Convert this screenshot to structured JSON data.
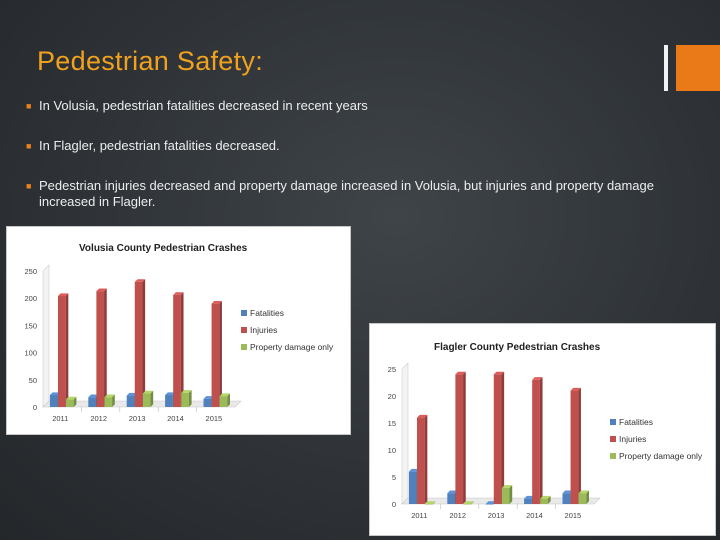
{
  "slide": {
    "title": "Pedestrian Safety:",
    "bullets": [
      "In Volusia, pedestrian fatalities decreased  in recent years",
      "In Flagler, pedestrian fatalities decreased.",
      "Pedestrian injuries decreased  and property damage increased in Volusia, but injuries and property damage increased in Flagler."
    ],
    "accent_colors": {
      "title": "#f0a11e",
      "bar_thick": "#ea7a17",
      "bar_thin": "#f2f2f2"
    }
  },
  "chart_data": [
    {
      "type": "bar",
      "title": "Volusia County  Pedestrian Crashes",
      "categories": [
        "2011",
        "2012",
        "2013",
        "2014",
        "2015"
      ],
      "series": [
        {
          "name": "Fatalities",
          "color": "#4f81bd",
          "values": [
            22,
            18,
            21,
            22,
            15
          ]
        },
        {
          "name": "Injuries",
          "color": "#c0504d",
          "values": [
            204,
            213,
            230,
            206,
            190
          ]
        },
        {
          "name": "Property damage only",
          "color": "#9bbb59",
          "values": [
            14,
            18,
            25,
            26,
            20
          ]
        }
      ],
      "ylim": [
        0,
        250
      ],
      "yticks": [
        "0",
        "50",
        "100",
        "150",
        "200",
        "250"
      ],
      "grid": false,
      "legend": "right"
    },
    {
      "type": "bar",
      "title": "Flagler County  Pedestrian Crashes",
      "categories": [
        "2011",
        "2012",
        "2013",
        "2014",
        "2015"
      ],
      "series": [
        {
          "name": "Fatalities",
          "color": "#4f81bd",
          "values": [
            6,
            2,
            0,
            1,
            2
          ]
        },
        {
          "name": "Injuries",
          "color": "#c0504d",
          "values": [
            16,
            24,
            24,
            23,
            21
          ]
        },
        {
          "name": "Property damage only",
          "color": "#9bbb59",
          "values": [
            0,
            0,
            3,
            1,
            2
          ]
        }
      ],
      "ylim": [
        0,
        25
      ],
      "yticks": [
        "0",
        "5",
        "10",
        "15",
        "20",
        "25"
      ],
      "grid": false,
      "legend": "right"
    }
  ]
}
